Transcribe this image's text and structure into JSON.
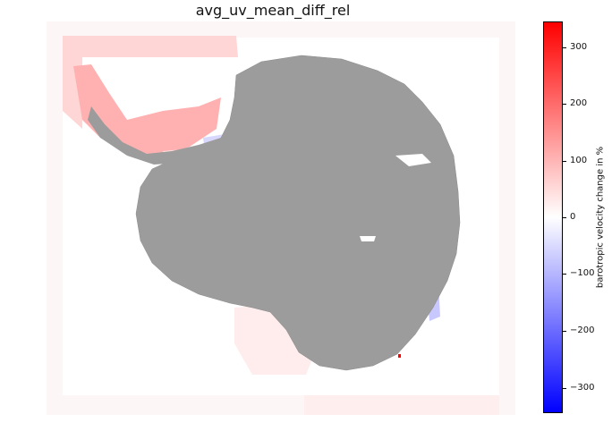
{
  "title": "avg_uv_mean_diff_rel",
  "colorbar": {
    "label": "barotropic velocity change in %",
    "ticks": [
      "300",
      "200",
      "100",
      "0",
      "−100",
      "−200",
      "−300"
    ],
    "colormap": "bwr",
    "min": -340,
    "max": 340
  },
  "colors": {
    "land": "#9c9c9c",
    "strong_increase": "#ffb0b0",
    "moderate_increase": "#ffe0e0",
    "slight_decrease": "#e8e8ff",
    "decrease": "#c8c8ff"
  }
}
